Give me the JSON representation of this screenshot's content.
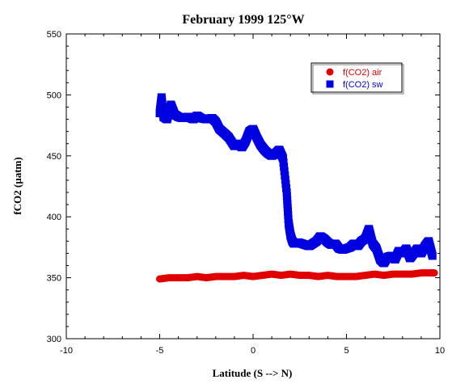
{
  "chart_data": {
    "type": "scatter",
    "title": "February 1999 125°W",
    "xlabel": "Latitude (S --> N)",
    "ylabel": "fCO2 (µatm)",
    "xlim": [
      -10,
      10
    ],
    "ylim": [
      300,
      550
    ],
    "xticks": [
      "-10",
      "-5",
      "0",
      "5",
      "10"
    ],
    "yticks": [
      "300",
      "350",
      "400",
      "450",
      "500",
      "550"
    ],
    "grid": false,
    "legend_position": "top-right",
    "series": [
      {
        "name": "f(CO2) air",
        "color": "#e00000",
        "marker": "circle",
        "x": [
          -5.0,
          -4.5,
          -4.0,
          -3.5,
          -3.0,
          -2.5,
          -2.0,
          -1.5,
          -1.0,
          -0.5,
          0.0,
          0.5,
          1.0,
          1.5,
          2.0,
          2.5,
          3.0,
          3.5,
          4.0,
          4.5,
          5.0,
          5.5,
          6.0,
          6.5,
          7.0,
          7.5,
          8.0,
          8.5,
          9.0,
          9.5,
          9.7
        ],
        "y": [
          349,
          350,
          350,
          350,
          351,
          350,
          351,
          351,
          351,
          352,
          351,
          352,
          353,
          352,
          353,
          352,
          352,
          351,
          352,
          351,
          351,
          351,
          352,
          353,
          352,
          353,
          353,
          353,
          354,
          354,
          354
        ]
      },
      {
        "name": "f(CO2) sw",
        "color": "#0000e0",
        "marker": "square",
        "x": [
          -5.0,
          -4.9,
          -4.8,
          -4.6,
          -4.4,
          -4.2,
          -4.0,
          -3.8,
          -3.5,
          -3.2,
          -3.0,
          -2.8,
          -2.5,
          -2.2,
          -2.0,
          -1.8,
          -1.5,
          -1.3,
          -1.0,
          -0.8,
          -0.6,
          -0.4,
          -0.2,
          0.0,
          0.2,
          0.4,
          0.6,
          0.8,
          1.0,
          1.2,
          1.4,
          1.6,
          1.8,
          1.9,
          2.0,
          2.1,
          2.2,
          2.4,
          2.6,
          2.8,
          3.0,
          3.2,
          3.4,
          3.6,
          3.8,
          4.0,
          4.2,
          4.4,
          4.6,
          4.8,
          5.0,
          5.2,
          5.4,
          5.6,
          5.8,
          6.0,
          6.2,
          6.4,
          6.6,
          6.8,
          7.0,
          7.2,
          7.4,
          7.6,
          7.8,
          8.0,
          8.2,
          8.4,
          8.6,
          8.8,
          9.0,
          9.2,
          9.4,
          9.6
        ],
        "y": [
          485,
          498,
          482,
          480,
          492,
          484,
          482,
          481,
          482,
          480,
          483,
          481,
          480,
          481,
          478,
          472,
          468,
          465,
          458,
          460,
          457,
          462,
          470,
          472,
          465,
          459,
          455,
          452,
          450,
          452,
          455,
          448,
          420,
          395,
          385,
          380,
          378,
          379,
          378,
          377,
          376,
          378,
          380,
          384,
          382,
          379,
          377,
          378,
          374,
          373,
          374,
          375,
          378,
          376,
          380,
          382,
          390,
          378,
          374,
          365,
          362,
          367,
          368,
          365,
          372,
          370,
          374,
          366,
          370,
          374,
          370,
          376,
          380,
          368
        ]
      }
    ]
  }
}
